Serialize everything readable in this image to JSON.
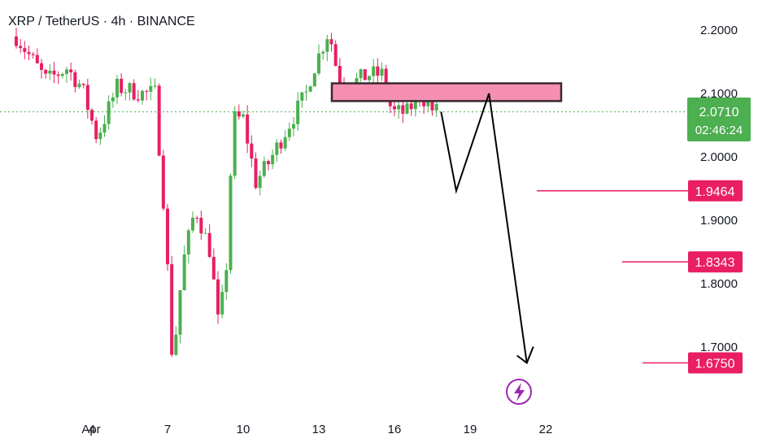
{
  "header": {
    "title": "XRP / TetherUS · 4h · BINANCE"
  },
  "chart_data": {
    "type": "candlestick",
    "title": "XRP / TetherUS · 4h · BINANCE",
    "symbol": "XRP / TetherUS",
    "interval": "4h",
    "exchange": "BINANCE",
    "y_ticks": [
      "2.2000",
      "2.1000",
      "2.0000",
      "1.9000",
      "1.8000",
      "1.7000"
    ],
    "x_ticks": [
      "Apr",
      "4",
      "7",
      "10",
      "13",
      "16",
      "19",
      "22"
    ],
    "ylim": [
      1.62,
      2.25
    ],
    "last_price": 2.071,
    "price_label": "2.0710",
    "countdown": "02:46:24",
    "resistance_zone": {
      "low": 2.088,
      "high": 2.116
    },
    "projection_path": [
      [
        17.85,
        2.071
      ],
      [
        18.45,
        1.9464
      ],
      [
        19.75,
        2.1
      ],
      [
        21.25,
        1.675
      ]
    ],
    "targets": [
      {
        "label": "1.9464",
        "value": 1.9464
      },
      {
        "label": "1.8343",
        "value": 1.8343
      },
      {
        "label": "1.6750",
        "value": 1.675
      }
    ],
    "grid": false,
    "colors": {
      "up": "#4caf50",
      "down": "#e91e63",
      "zone_fill": "#f48fb1",
      "zone_border": "#3a2a2e",
      "target": "#e91e63",
      "last_price": "#4caf50",
      "arrow": "#000000",
      "event_icon": "#9c27b0"
    }
  }
}
